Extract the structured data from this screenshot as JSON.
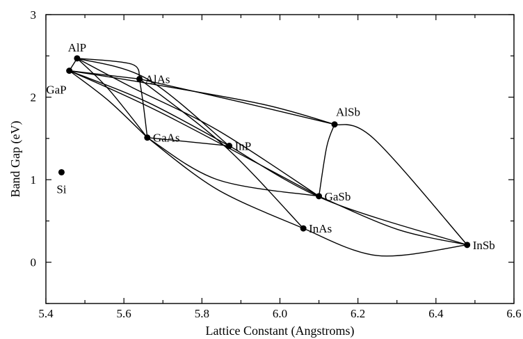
{
  "chart_data": {
    "type": "scatter",
    "xlabel": "Lattice Constant (Angstroms)",
    "ylabel": "Band Gap (eV)",
    "xlim": [
      5.4,
      6.6
    ],
    "ylim": [
      -0.5,
      3.0
    ],
    "xticks": [
      "5.4",
      "5.6",
      "5.8",
      "6.0",
      "6.2",
      "6.4",
      "6.6"
    ],
    "yticks": [
      "0",
      "1",
      "2",
      "3"
    ],
    "points": [
      {
        "label": "AlP",
        "x": 5.48,
        "y": 2.47,
        "label_pos": "above"
      },
      {
        "label": "GaP",
        "x": 5.46,
        "y": 2.32,
        "label_pos": "below-left"
      },
      {
        "label": "AlAs",
        "x": 5.64,
        "y": 2.22,
        "label_pos": "right"
      },
      {
        "label": "GaAs",
        "x": 5.66,
        "y": 1.51,
        "label_pos": "right"
      },
      {
        "label": "InP",
        "x": 5.87,
        "y": 1.41,
        "label_pos": "right"
      },
      {
        "label": "AlSb",
        "x": 6.14,
        "y": 1.67,
        "label_pos": "above-right"
      },
      {
        "label": "GaSb",
        "x": 6.1,
        "y": 0.8,
        "label_pos": "right"
      },
      {
        "label": "InAs",
        "x": 6.06,
        "y": 0.41,
        "label_pos": "right"
      },
      {
        "label": "InSb",
        "x": 6.48,
        "y": 0.21,
        "label_pos": "right"
      },
      {
        "label": "Si",
        "x": 5.44,
        "y": 1.09,
        "label_pos": "below"
      }
    ],
    "connecting_curves": [
      {
        "from": "AlP",
        "to": "GaP",
        "points": [
          [
            5.48,
            2.47
          ],
          [
            5.46,
            2.32
          ]
        ]
      },
      {
        "from": "AlP",
        "to": "AlAs",
        "points": [
          [
            5.48,
            2.47
          ],
          [
            5.62,
            2.4
          ],
          [
            5.64,
            2.22
          ]
        ]
      },
      {
        "from": "AlP",
        "to": "InP",
        "points": [
          [
            5.48,
            2.47
          ],
          [
            5.66,
            2.22
          ],
          [
            5.87,
            1.41
          ]
        ]
      },
      {
        "from": "AlP",
        "to": "GaAs",
        "points": [
          [
            5.48,
            2.47
          ],
          [
            5.56,
            2.1
          ],
          [
            5.66,
            1.51
          ]
        ]
      },
      {
        "from": "AlP",
        "to": "GaSb",
        "points": [
          [
            5.48,
            2.47
          ],
          [
            5.62,
            2.12
          ],
          [
            5.84,
            1.6
          ],
          [
            6.1,
            0.8
          ]
        ]
      },
      {
        "from": "AlAs",
        "to": "AlSb",
        "points": [
          [
            5.64,
            2.22
          ],
          [
            5.9,
            1.94
          ],
          [
            6.14,
            1.67
          ]
        ]
      },
      {
        "from": "AlAs",
        "to": "GaAs",
        "points": [
          [
            5.64,
            2.22
          ],
          [
            5.65,
            1.9
          ],
          [
            5.66,
            1.51
          ]
        ]
      },
      {
        "from": "AlAs",
        "to": "InAs",
        "points": [
          [
            5.64,
            2.22
          ],
          [
            5.86,
            1.4
          ],
          [
            6.06,
            0.41
          ]
        ]
      },
      {
        "from": "GaP",
        "to": "AlAs",
        "points": [
          [
            5.46,
            2.32
          ],
          [
            5.64,
            2.22
          ]
        ]
      },
      {
        "from": "GaP",
        "to": "InP",
        "points": [
          [
            5.46,
            2.32
          ],
          [
            5.66,
            1.94
          ],
          [
            5.87,
            1.41
          ]
        ]
      },
      {
        "from": "GaP",
        "to": "GaAs",
        "points": [
          [
            5.46,
            2.32
          ],
          [
            5.56,
            1.96
          ],
          [
            5.66,
            1.51
          ]
        ]
      },
      {
        "from": "GaP",
        "to": "AlSb",
        "points": [
          [
            5.46,
            2.32
          ],
          [
            5.62,
            2.2
          ],
          [
            5.95,
            1.92
          ],
          [
            6.14,
            1.67
          ]
        ]
      },
      {
        "from": "GaP",
        "to": "GaSb",
        "points": [
          [
            5.46,
            2.32
          ],
          [
            5.7,
            1.8
          ],
          [
            6.1,
            0.8
          ]
        ]
      },
      {
        "from": "GaAs",
        "to": "InAs",
        "points": [
          [
            5.66,
            1.51
          ],
          [
            5.84,
            0.88
          ],
          [
            6.06,
            0.41
          ]
        ]
      },
      {
        "from": "GaAs",
        "to": "GaSb",
        "points": [
          [
            5.66,
            1.51
          ],
          [
            5.84,
            1.0
          ],
          [
            6.1,
            0.8
          ]
        ]
      },
      {
        "from": "GaAs",
        "to": "InP",
        "points": [
          [
            5.66,
            1.51
          ],
          [
            5.87,
            1.41
          ]
        ]
      },
      {
        "from": "AlSb",
        "to": "GaSb",
        "points": [
          [
            6.14,
            1.67
          ],
          [
            6.12,
            1.4
          ],
          [
            6.1,
            0.8
          ]
        ]
      },
      {
        "from": "AlSb",
        "to": "InSb",
        "points": [
          [
            6.14,
            1.67
          ],
          [
            6.24,
            1.5
          ],
          [
            6.48,
            0.21
          ]
        ]
      },
      {
        "from": "GaSb",
        "to": "InSb",
        "points": [
          [
            6.1,
            0.8
          ],
          [
            6.3,
            0.4
          ],
          [
            6.48,
            0.21
          ]
        ]
      },
      {
        "from": "InP",
        "to": "InSb",
        "points": [
          [
            5.87,
            1.41
          ],
          [
            6.12,
            0.75
          ],
          [
            6.48,
            0.21
          ]
        ]
      },
      {
        "from": "InAs",
        "to": "InSb",
        "points": [
          [
            6.06,
            0.41
          ],
          [
            6.25,
            0.08
          ],
          [
            6.48,
            0.21
          ]
        ]
      }
    ]
  }
}
